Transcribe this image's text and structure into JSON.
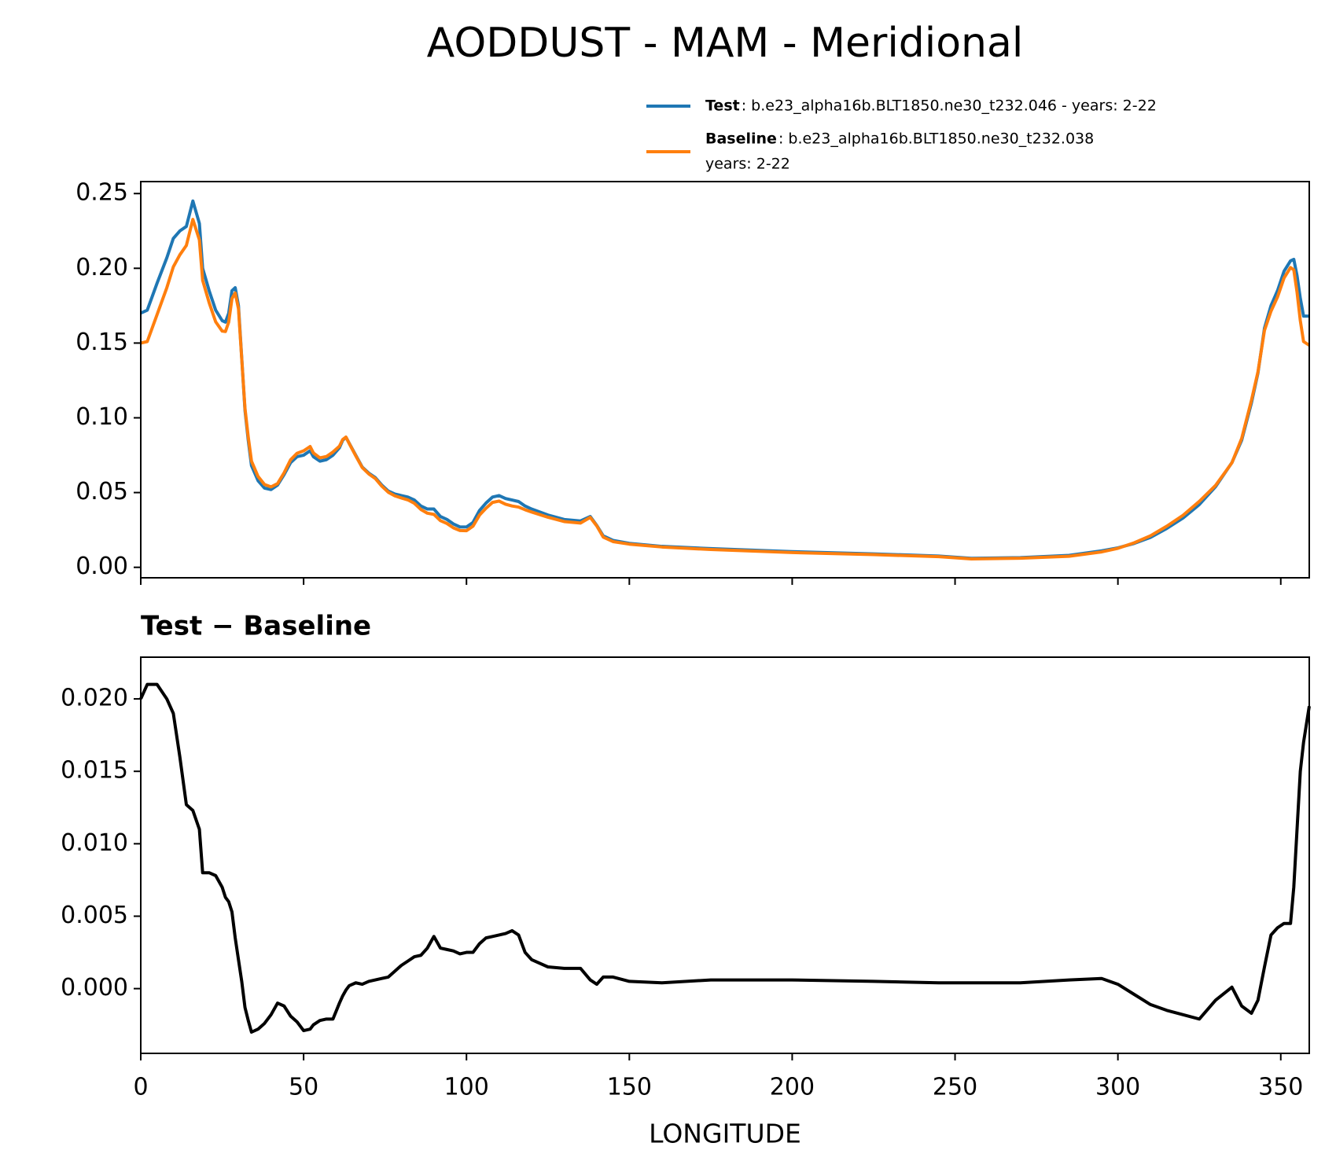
{
  "chart_data": [
    {
      "type": "line",
      "title": "AODDUST - MAM - Meridional",
      "x": [
        0,
        2,
        5,
        8,
        10,
        12,
        14,
        16,
        18,
        19,
        21,
        23,
        25,
        26,
        27,
        28,
        29,
        30,
        31,
        32,
        33,
        34,
        36,
        38,
        40,
        42,
        44,
        46,
        48,
        50,
        52,
        53,
        55,
        57,
        59,
        61,
        62,
        63,
        64,
        66,
        68,
        70,
        72,
        74,
        76,
        78,
        80,
        82,
        84,
        86,
        88,
        90,
        92,
        94,
        96,
        98,
        100,
        102,
        104,
        106,
        108,
        110,
        112,
        114,
        116,
        118,
        120,
        125,
        130,
        135,
        138,
        140,
        142,
        145,
        150,
        160,
        175,
        200,
        225,
        245,
        255,
        270,
        285,
        295,
        300,
        305,
        310,
        315,
        320,
        325,
        330,
        335,
        338,
        341,
        343,
        345,
        347,
        349,
        351,
        353,
        354,
        355,
        356,
        357,
        358.75
      ],
      "series": [
        {
          "name": "Test",
          "description": [
            ": b.e23_alpha16b.BLT1850.ne30_t232.046 - years: 2-22"
          ],
          "color": "#1f77b4",
          "values": [
            0.17,
            0.172,
            0.19,
            0.207,
            0.22,
            0.225,
            0.228,
            0.245,
            0.23,
            0.2,
            0.185,
            0.172,
            0.165,
            0.164,
            0.17,
            0.185,
            0.187,
            0.175,
            0.14,
            0.105,
            0.085,
            0.068,
            0.058,
            0.053,
            0.052,
            0.055,
            0.062,
            0.07,
            0.074,
            0.075,
            0.078,
            0.074,
            0.071,
            0.072,
            0.075,
            0.08,
            0.085,
            0.087,
            0.083,
            0.075,
            0.067,
            0.063,
            0.06,
            0.055,
            0.051,
            0.049,
            0.048,
            0.047,
            0.045,
            0.041,
            0.039,
            0.039,
            0.034,
            0.032,
            0.029,
            0.027,
            0.027,
            0.03,
            0.038,
            0.043,
            0.047,
            0.048,
            0.046,
            0.045,
            0.044,
            0.041,
            0.039,
            0.035,
            0.032,
            0.031,
            0.034,
            0.028,
            0.021,
            0.018,
            0.016,
            0.014,
            0.0125,
            0.0105,
            0.009,
            0.0075,
            0.006,
            0.0065,
            0.008,
            0.011,
            0.013,
            0.016,
            0.02,
            0.026,
            0.033,
            0.042,
            0.054,
            0.07,
            0.085,
            0.11,
            0.13,
            0.16,
            0.175,
            0.185,
            0.198,
            0.205,
            0.206,
            0.195,
            0.18,
            0.168,
            0.168
          ]
        },
        {
          "name": "Baseline",
          "description": [
            ": b.e23_alpha16b.BLT1850.ne30_t232.038",
            "years: 2-22"
          ],
          "color": "#ff7f0e",
          "values": [
            0.15,
            0.151,
            0.169,
            0.187,
            0.201,
            0.209,
            0.2153,
            0.2327,
            0.219,
            0.192,
            0.177,
            0.1642,
            0.158,
            0.1577,
            0.164,
            0.1797,
            0.1835,
            0.173,
            0.1395,
            0.1063,
            0.0872,
            0.071,
            0.0608,
            0.0554,
            0.0538,
            0.056,
            0.0632,
            0.0719,
            0.0763,
            0.0779,
            0.0808,
            0.0765,
            0.0732,
            0.0741,
            0.0771,
            0.081,
            0.0855,
            0.0871,
            0.0828,
            0.0746,
            0.0667,
            0.0625,
            0.0594,
            0.0543,
            0.0502,
            0.0478,
            0.0464,
            0.0451,
            0.0428,
            0.0387,
            0.0362,
            0.0354,
            0.0312,
            0.0293,
            0.0264,
            0.0246,
            0.0245,
            0.0275,
            0.0349,
            0.0395,
            0.0434,
            0.0443,
            0.0422,
            0.041,
            0.0403,
            0.0385,
            0.037,
            0.0335,
            0.0306,
            0.0296,
            0.0334,
            0.0277,
            0.0202,
            0.0172,
            0.0155,
            0.0136,
            0.0119,
            0.0099,
            0.0085,
            0.0071,
            0.0056,
            0.0061,
            0.0074,
            0.0103,
            0.0127,
            0.0164,
            0.0211,
            0.0275,
            0.0348,
            0.0441,
            0.0548,
            0.0699,
            0.0862,
            0.1117,
            0.1308,
            0.1585,
            0.1713,
            0.1808,
            0.1935,
            0.2005,
            0.199,
            0.184,
            0.165,
            0.151,
            0.1485
          ]
        }
      ],
      "xlim": [
        0,
        358.75
      ],
      "xticks": [
        0,
        50,
        100,
        150,
        200,
        250,
        300,
        350
      ],
      "ylim": [
        -0.007,
        0.258
      ],
      "yticks": [
        {
          "value": 0,
          "label": "0.00"
        },
        {
          "value": 0.05,
          "label": "0.05"
        },
        {
          "value": 0.1,
          "label": "0.10"
        },
        {
          "value": 0.15,
          "label": "0.15"
        },
        {
          "value": 0.2,
          "label": "0.20"
        },
        {
          "value": 0.25,
          "label": "0.25"
        }
      ]
    },
    {
      "type": "line",
      "title": "Test − Baseline",
      "xlabel": "LONGITUDE",
      "x": [
        0,
        2,
        5,
        8,
        10,
        12,
        14,
        16,
        18,
        19,
        21,
        23,
        25,
        26,
        27,
        28,
        29,
        30,
        31,
        32,
        33,
        34,
        36,
        38,
        40,
        42,
        44,
        46,
        48,
        50,
        52,
        53,
        55,
        57,
        59,
        61,
        62,
        63,
        64,
        66,
        68,
        70,
        72,
        74,
        76,
        78,
        80,
        82,
        84,
        86,
        88,
        90,
        92,
        94,
        96,
        98,
        100,
        102,
        104,
        106,
        108,
        110,
        112,
        114,
        116,
        118,
        120,
        125,
        130,
        135,
        138,
        140,
        142,
        145,
        150,
        160,
        175,
        200,
        225,
        245,
        255,
        270,
        285,
        295,
        300,
        305,
        310,
        315,
        320,
        325,
        330,
        335,
        338,
        341,
        343,
        345,
        347,
        349,
        351,
        353,
        354,
        355,
        356,
        357,
        358.75
      ],
      "series": [
        {
          "color": "#000000",
          "values": [
            0.02,
            0.021,
            0.021,
            0.02,
            0.019,
            0.016,
            0.0127,
            0.0123,
            0.011,
            0.008,
            0.008,
            0.0078,
            0.007,
            0.0063,
            0.006,
            0.0053,
            0.0035,
            0.002,
            0.0005,
            -0.0013,
            -0.0022,
            -0.003,
            -0.0028,
            -0.0024,
            -0.0018,
            -0.001,
            -0.0012,
            -0.0019,
            -0.0023,
            -0.0029,
            -0.0028,
            -0.0025,
            -0.0022,
            -0.0021,
            -0.0021,
            -0.001,
            -0.0005,
            -0.0001,
            0.0002,
            0.0004,
            0.0003,
            0.0005,
            0.0006,
            0.0007,
            0.0008,
            0.0012,
            0.0016,
            0.0019,
            0.0022,
            0.0023,
            0.0028,
            0.0036,
            0.0028,
            0.0027,
            0.0026,
            0.0024,
            0.0025,
            0.0025,
            0.0031,
            0.0035,
            0.0036,
            0.0037,
            0.0038,
            0.004,
            0.0037,
            0.0025,
            0.002,
            0.0015,
            0.0014,
            0.0014,
            0.0006,
            0.0003,
            0.0008,
            0.0008,
            0.0005,
            0.0004,
            0.0006,
            0.0006,
            0.0005,
            0.0004,
            0.0004,
            0.0004,
            0.0006,
            0.0007,
            0.0003,
            -0.0004,
            -0.0011,
            -0.0015,
            -0.0018,
            -0.0021,
            -0.0008,
            0.0001,
            -0.0012,
            -0.0017,
            -0.0008,
            0.0015,
            0.0037,
            0.0042,
            0.0045,
            0.0045,
            0.007,
            0.011,
            0.015,
            0.017,
            0.0195
          ]
        }
      ],
      "xlim": [
        0,
        358.75
      ],
      "xticks": [
        0,
        50,
        100,
        150,
        200,
        250,
        300,
        350
      ],
      "ylim": [
        -0.00447,
        0.02288
      ],
      "yticks": [
        {
          "value": 0,
          "label": "0.000"
        },
        {
          "value": 0.005,
          "label": "0.005"
        },
        {
          "value": 0.01,
          "label": "0.010"
        },
        {
          "value": 0.015,
          "label": "0.015"
        },
        {
          "value": 0.02,
          "label": "0.020"
        }
      ]
    }
  ]
}
